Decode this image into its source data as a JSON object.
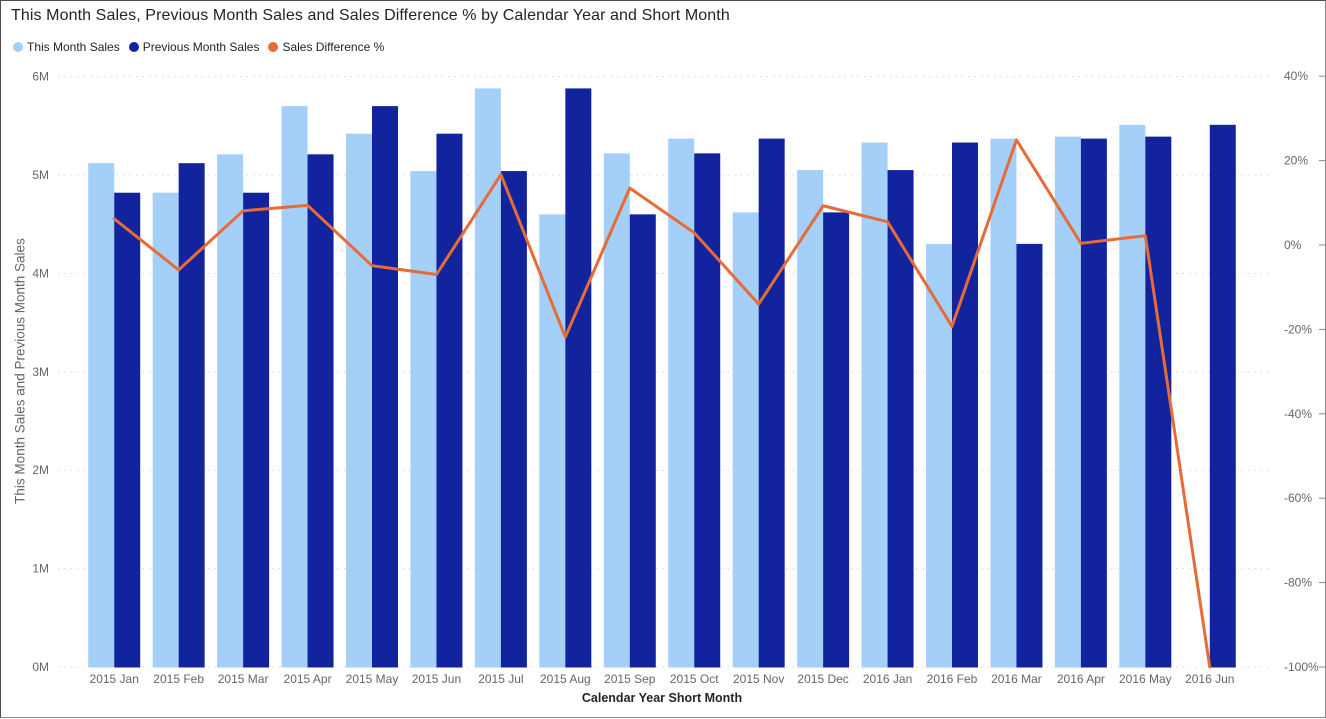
{
  "chart": {
    "title": "This Month Sales, Previous Month Sales and Sales Difference % by Calendar Year and Short Month",
    "legend": {
      "position": "top-left",
      "items": [
        {
          "label": "This Month Sales",
          "color": "#A4CFF9"
        },
        {
          "label": "Previous Month Sales",
          "color": "#12239E"
        },
        {
          "label": "Sales Difference %",
          "color": "#E66C37"
        }
      ]
    },
    "x_axis": {
      "title": "Calendar Year Short Month"
    },
    "y_axis_left": {
      "title": "This Month Sales and Previous Month Sales",
      "tick_labels": [
        "0M",
        "1M",
        "2M",
        "3M",
        "4M",
        "5M",
        "6M"
      ]
    },
    "y_axis_right": {
      "tick_labels": [
        "40%",
        "20%",
        "0%",
        "-20%",
        "-40%",
        "-60%",
        "-80%",
        "-100%"
      ]
    },
    "colors": {
      "background": "#FFFFFF",
      "title_text": "#252423",
      "axis_text": "#666666",
      "gridline": "#D6D4D2",
      "frame_border": "#4D4D4D"
    }
  },
  "chart_data": {
    "type": "combo-clustered-column-line",
    "categories": [
      "2015 Jan",
      "2015 Feb",
      "2015 Mar",
      "2015 Apr",
      "2015 May",
      "2015 Jun",
      "2015 Jul",
      "2015 Aug",
      "2015 Sep",
      "2015 Oct",
      "2015 Nov",
      "2015 Dec",
      "2016 Jan",
      "2016 Feb",
      "2016 Mar",
      "2016 Apr",
      "2016 May",
      "2016 Jun"
    ],
    "series": [
      {
        "name": "This Month Sales",
        "type": "bar",
        "axis": "left",
        "color": "#A4CFF9",
        "values": [
          5120000,
          4820000,
          5210000,
          5700000,
          5420000,
          5040000,
          5880000,
          4600000,
          5220000,
          5370000,
          4620000,
          5050000,
          5330000,
          4300000,
          5370000,
          5390000,
          5510000,
          null
        ]
      },
      {
        "name": "Previous Month Sales",
        "type": "bar",
        "axis": "left",
        "color": "#12239E",
        "values": [
          4820000,
          5120000,
          4820000,
          5210000,
          5700000,
          5420000,
          5040000,
          5880000,
          4600000,
          5220000,
          5370000,
          4620000,
          5050000,
          5330000,
          4300000,
          5370000,
          5390000,
          5510000
        ]
      },
      {
        "name": "Sales Difference %",
        "type": "line",
        "axis": "right",
        "color": "#E66C37",
        "values": [
          6.2,
          -5.9,
          8.1,
          9.4,
          -4.9,
          -7.0,
          16.7,
          -21.8,
          13.5,
          2.9,
          -14.0,
          9.3,
          5.5,
          -19.3,
          24.9,
          0.4,
          2.2,
          -100.0
        ]
      }
    ],
    "left_axis": {
      "range": [
        0,
        6000000
      ],
      "tick_step": 1000000,
      "unit": "M"
    },
    "right_axis": {
      "range": [
        -100,
        40
      ],
      "tick_step": 20,
      "unit": "%"
    },
    "grid": "horizontal-dotted",
    "legend_position": "top-left"
  }
}
